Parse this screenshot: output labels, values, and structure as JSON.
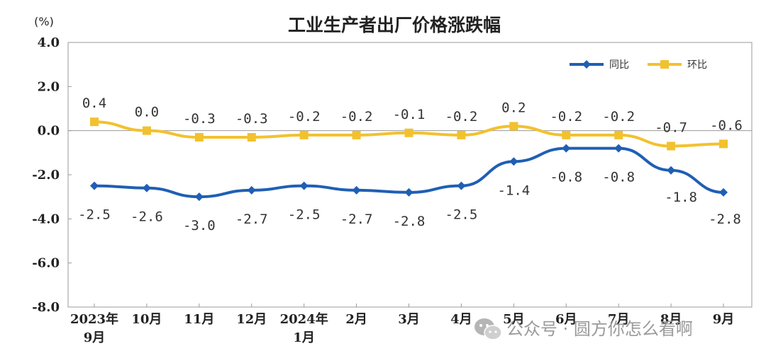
{
  "chart_data": {
    "type": "line",
    "title": "工业生产者出厂价格涨跌幅",
    "ylabel": "(%)",
    "ylim": [
      -8.0,
      4.0
    ],
    "yticks": [
      "4.0",
      "2.0",
      "0.0",
      "-2.0",
      "-4.0",
      "-6.0",
      "-8.0"
    ],
    "ytick_values": [
      4,
      2,
      0,
      -2,
      -4,
      -6,
      -8
    ],
    "categories": [
      [
        "2023年",
        "9月"
      ],
      [
        "10月"
      ],
      [
        "11月"
      ],
      [
        "12月"
      ],
      [
        "2024年",
        "1月"
      ],
      [
        "2月"
      ],
      [
        "3月"
      ],
      [
        "4月"
      ],
      [
        "5月"
      ],
      [
        "6月"
      ],
      [
        "7月"
      ],
      [
        "8月"
      ],
      [
        "9月"
      ]
    ],
    "series": [
      {
        "name": "同比",
        "color": "#1f5fb4",
        "values": [
          -2.5,
          -2.6,
          -3.0,
          -2.7,
          -2.5,
          -2.7,
          -2.8,
          -2.5,
          -1.4,
          -0.8,
          -0.8,
          -1.8,
          -2.8
        ],
        "labels": [
          "-2.5",
          "-2.6",
          "-3.0",
          "-2.7",
          "-2.5",
          "-2.7",
          "-2.8",
          "-2.5",
          "-1.4",
          "-0.8",
          "-0.8",
          "-1.8",
          "-2.8"
        ]
      },
      {
        "name": "环比",
        "color": "#f2c12e",
        "values": [
          0.4,
          0.0,
          -0.3,
          -0.3,
          -0.2,
          -0.2,
          -0.1,
          -0.2,
          0.2,
          -0.2,
          -0.2,
          -0.7,
          -0.6
        ],
        "labels": [
          "0.4",
          "0.0",
          "-0.3",
          "-0.3",
          "-0.2",
          "-0.2",
          "-0.1",
          "-0.2",
          "0.2",
          "-0.2",
          "-0.2",
          "-0.7",
          "-0.6"
        ]
      }
    ],
    "grid": false,
    "legend_position": "top-right"
  },
  "watermark": {
    "icon": "wechat-icon",
    "text": "公众号 · 圆方你怎么看啊"
  }
}
